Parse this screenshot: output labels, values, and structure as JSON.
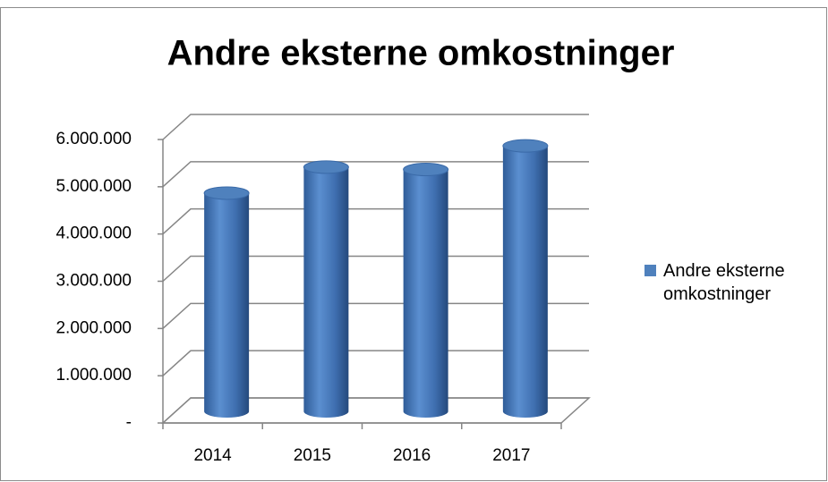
{
  "chart_data": {
    "type": "bar",
    "title": "Andre eksterne omkostninger",
    "categories": [
      "2014",
      "2015",
      "2016",
      "2017"
    ],
    "series": [
      {
        "name": "Andre eksterne omkostninger",
        "color": "#4f81bd",
        "values": [
          4600000,
          5150000,
          5100000,
          5600000
        ]
      }
    ],
    "ylim": [
      0,
      6000000
    ],
    "yticks": [
      {
        "value": 0,
        "label": "-"
      },
      {
        "value": 1000000,
        "label": "1.000.000"
      },
      {
        "value": 2000000,
        "label": "2.000.000"
      },
      {
        "value": 3000000,
        "label": "3.000.000"
      },
      {
        "value": 4000000,
        "label": "4.000.000"
      },
      {
        "value": 5000000,
        "label": "5.000.000"
      },
      {
        "value": 6000000,
        "label": "6.000.000"
      }
    ],
    "grid": true,
    "legend": "right"
  }
}
